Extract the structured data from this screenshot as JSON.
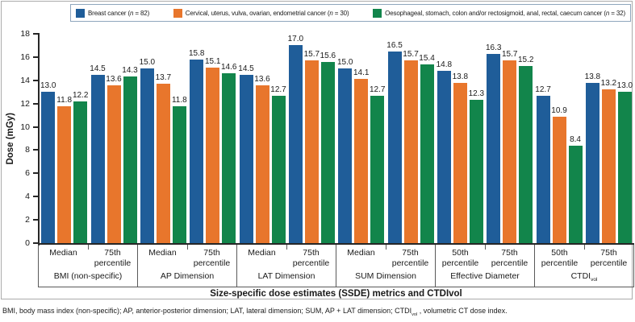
{
  "chart_data": {
    "type": "bar",
    "title": "",
    "ylabel": "Dose (mGy)",
    "xlabel": "Size-specific dose estimates (SSDE) metrics and CTDIvol",
    "ylim": [
      0,
      18
    ],
    "yticks": [
      0,
      2,
      4,
      6,
      8,
      10,
      12,
      14,
      16,
      18
    ],
    "grid": false,
    "legend_position": "top",
    "value_label_decimals": 1,
    "groups": [
      {
        "label": "BMI (non-specific)",
        "label_sub": "",
        "subgroups": [
          "Median",
          "75th percentile"
        ]
      },
      {
        "label": "AP Dimension",
        "label_sub": "",
        "subgroups": [
          "Median",
          "75th percentile"
        ]
      },
      {
        "label": "LAT Dimension",
        "label_sub": "",
        "subgroups": [
          "Median",
          "75th percentile"
        ]
      },
      {
        "label": "SUM Dimension",
        "label_sub": "",
        "subgroups": [
          "Median",
          "75th percentile"
        ]
      },
      {
        "label": "Effective Diameter",
        "label_sub": "",
        "subgroups": [
          "50th percentile",
          "75th percentile"
        ]
      },
      {
        "label": "CTDI",
        "label_sub": "vol",
        "subgroups": [
          "50th percentile",
          "75th percentile"
        ]
      }
    ],
    "series": [
      {
        "name": "Breast cancer (n = 82)",
        "legend_segments": [
          {
            "t": "Breast cancer ("
          },
          {
            "t": "n",
            "italic": true
          },
          {
            "t": " = 82)"
          }
        ],
        "color": "#1f5d99",
        "values": [
          13.0,
          14.5,
          15.0,
          15.8,
          14.5,
          17.0,
          15.0,
          16.5,
          14.8,
          16.3,
          12.7,
          13.8
        ]
      },
      {
        "name": "Cervical, uterus, vulva, ovarian, endometrial cancer (n = 30)",
        "legend_segments": [
          {
            "t": "Cervical, uterus, vulva, ovarian, endometrial cancer ("
          },
          {
            "t": "n",
            "italic": true
          },
          {
            "t": " = 30)"
          }
        ],
        "color": "#e8762c",
        "values": [
          11.8,
          13.6,
          13.7,
          15.1,
          13.6,
          15.7,
          14.1,
          15.7,
          13.8,
          15.7,
          10.9,
          13.2
        ]
      },
      {
        "name": "Oesophageal, stomach, colon and/or rectosigmoid, anal, rectal, caecum cancer (n = 32)",
        "legend_segments": [
          {
            "t": "Oesophageal, stomach, colon and/or rectosigmoid, anal, rectal, caecum cancer ("
          },
          {
            "t": "n",
            "italic": true
          },
          {
            "t": " = 32)"
          }
        ],
        "color": "#12854b",
        "values": [
          12.2,
          14.3,
          11.8,
          14.6,
          12.7,
          15.6,
          12.7,
          15.4,
          12.3,
          15.2,
          8.4,
          13.0
        ]
      }
    ]
  },
  "footnote": {
    "segments": [
      {
        "t": "BMI, body mass index (non-specific); AP, anterior-posterior dimension; LAT, lateral dimension; SUM, AP + LAT dimension; CTDI"
      },
      {
        "t": "vol",
        "sub": true
      },
      {
        "t": " , volumetric CT dose index."
      }
    ]
  },
  "colors": {
    "axis": "#262626",
    "label_rule": "#595959",
    "figure_border": "#ababab",
    "legend_border": "#8fa6bd"
  }
}
